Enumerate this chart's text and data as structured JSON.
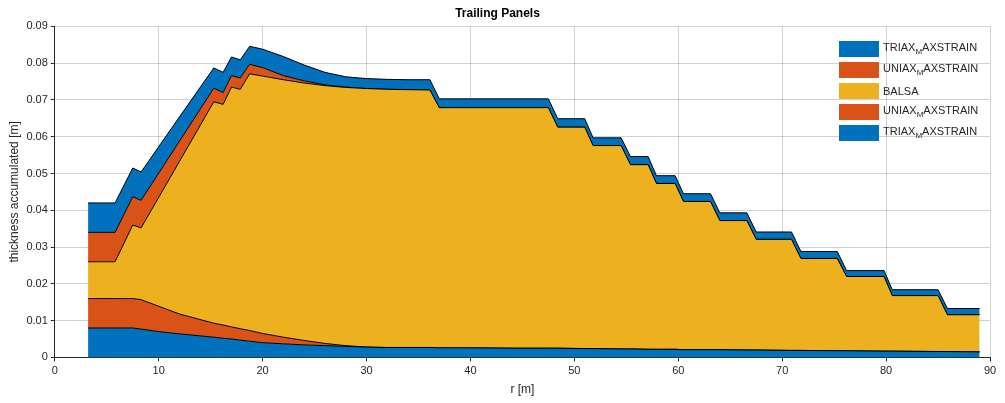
{
  "chart_data": {
    "type": "area",
    "title": "Trailing Panels",
    "xlabel": "r [m]",
    "ylabel": "thickness accumulated [m]",
    "x": [
      3.2,
      4.2,
      5.2,
      5.8,
      7.5,
      8.3,
      10,
      12,
      15.3,
      16.2,
      17,
      17.85,
      18.75,
      20,
      22,
      24,
      26,
      28,
      30,
      32,
      34,
      36.1,
      37,
      40,
      44,
      47.5,
      48.4,
      51,
      51.8,
      54.5,
      55.4,
      57.1,
      57.9,
      59.7,
      60.5,
      63.1,
      64,
      66.6,
      67.5,
      70.9,
      71.8,
      75.3,
      76.2,
      79.8,
      80.6,
      85,
      85.9,
      89
    ],
    "stacked": true,
    "series": [
      {
        "name": "TRIAX$_{M}$AXSTRAIN",
        "color": "#0072bd",
        "values": [
          0.008,
          0.008,
          0.008,
          0.008,
          0.008,
          0.0077,
          0.007,
          0.0064,
          0.0055,
          0.0052,
          0.005,
          0.0047,
          0.0044,
          0.004,
          0.0037,
          0.0034,
          0.0032,
          0.003,
          0.0028,
          0.0027,
          0.0027,
          0.0027,
          0.0026,
          0.0026,
          0.0025,
          0.0025,
          0.0025,
          0.0024,
          0.0024,
          0.0023,
          0.0023,
          0.0022,
          0.0022,
          0.0022,
          0.0021,
          0.0021,
          0.0021,
          0.002,
          0.002,
          0.0019,
          0.0019,
          0.0018,
          0.0018,
          0.0017,
          0.0017,
          0.0016,
          0.0016,
          0.0015
        ]
      },
      {
        "name": "UNIAX$_{M}$AXSTRAIN",
        "color": "#d95319",
        "values": [
          0.008,
          0.008,
          0.008,
          0.008,
          0.008,
          0.008,
          0.0069,
          0.0054,
          0.0038,
          0.0036,
          0.0033,
          0.0031,
          0.0029,
          0.0025,
          0.0018,
          0.0012,
          0.0006,
          0.0002,
          0,
          0,
          0,
          0,
          0,
          0,
          0,
          0,
          0,
          0,
          0,
          0,
          0,
          0,
          0,
          0,
          0,
          0,
          0,
          0,
          0,
          0,
          0,
          0,
          0,
          0,
          0,
          0,
          0,
          0
        ]
      },
      {
        "name": "BALSA",
        "color": "#edb120",
        "values": [
          0.01,
          0.01,
          0.01,
          0.01,
          0.02,
          0.0195,
          0.0296,
          0.0415,
          0.0602,
          0.06,
          0.0652,
          0.0651,
          0.0698,
          0.07,
          0.07,
          0.07,
          0.0701,
          0.0702,
          0.0703,
          0.0702,
          0.0701,
          0.07,
          0.0653,
          0.0653,
          0.0654,
          0.0654,
          0.0601,
          0.0602,
          0.0552,
          0.0553,
          0.0501,
          0.0502,
          0.0451,
          0.0451,
          0.0403,
          0.0403,
          0.0351,
          0.0352,
          0.0301,
          0.0302,
          0.025,
          0.0251,
          0.0202,
          0.0203,
          0.0151,
          0.0152,
          0.01,
          0.0101
        ]
      },
      {
        "name": "UNIAX$_{M}$AXSTRAIN",
        "color": "#d95319",
        "values": [
          0.008,
          0.008,
          0.008,
          0.008,
          0.0077,
          0.0075,
          0.0066,
          0.0055,
          0.0037,
          0.0032,
          0.0031,
          0.0031,
          0.0026,
          0.0023,
          0.0011,
          0.0006,
          0.0002,
          0.0001,
          0,
          0,
          0,
          0,
          0,
          0,
          0,
          0,
          0,
          0,
          0,
          0,
          0,
          0,
          0,
          0,
          0,
          0,
          0,
          0,
          0,
          0,
          0,
          0,
          0,
          0,
          0,
          0,
          0,
          0
        ]
      },
      {
        "name": "TRIAX$_{M}$AXSTRAIN",
        "color": "#0072bd",
        "values": [
          0.008,
          0.008,
          0.008,
          0.008,
          0.0078,
          0.0077,
          0.0072,
          0.0066,
          0.0055,
          0.0055,
          0.0051,
          0.0049,
          0.0049,
          0.005,
          0.0052,
          0.0043,
          0.0034,
          0.0028,
          0.0027,
          0.0027,
          0.0027,
          0.0028,
          0.0024,
          0.0024,
          0.0024,
          0.0024,
          0.0023,
          0.0023,
          0.0021,
          0.0021,
          0.0022,
          0.0022,
          0.0021,
          0.0021,
          0.0021,
          0.0021,
          0.0021,
          0.0021,
          0.002,
          0.002,
          0.0019,
          0.0019,
          0.0016,
          0.0016,
          0.0016,
          0.0016,
          0.0017,
          0.0017
        ]
      }
    ],
    "xlim": [
      0,
      90
    ],
    "xticks": [
      0,
      10,
      20,
      30,
      40,
      50,
      60,
      70,
      80,
      90
    ],
    "ylim": [
      0,
      0.09
    ],
    "yticks": [
      0,
      0.01,
      0.02,
      0.03,
      0.04,
      0.05,
      0.06,
      0.07,
      0.08,
      0.09
    ],
    "grid": true,
    "legend": "top right",
    "line_style": "solid"
  }
}
